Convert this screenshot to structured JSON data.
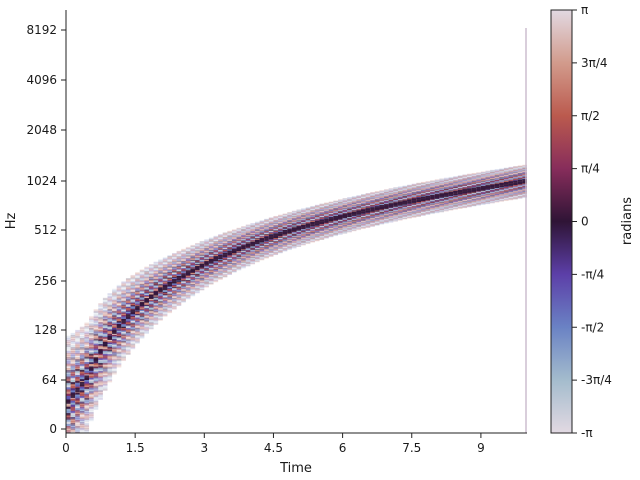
{
  "chart_data": {
    "type": "heatmap",
    "title": "",
    "xlabel": "Time",
    "ylabel": "Hz",
    "colorbar_label": "radians",
    "colormap": "twilight",
    "xlim": [
      0,
      10
    ],
    "x_ticks": [
      0,
      1.5,
      3,
      4.5,
      6,
      7.5,
      9
    ],
    "x_tick_labels": [
      "0",
      "1.5",
      "3",
      "4.5",
      "6",
      "7.5",
      "9"
    ],
    "y_scale": "symlog",
    "y_ticks": [
      0,
      64,
      128,
      256,
      512,
      1024,
      2048,
      4096,
      8192
    ],
    "y_tick_labels": [
      "0",
      "64",
      "128",
      "256",
      "512",
      "1024",
      "2048",
      "4096",
      "8192"
    ],
    "colorbar_range": [
      -3.14159,
      3.14159
    ],
    "colorbar_tick_labels": [
      "π",
      "3π/4",
      "π/2",
      "π/4",
      "0",
      "-π/4",
      "-π/2",
      "-3π/4",
      "-π"
    ],
    "chirp": {
      "description": "phase-colored chirp track rising from low frequency to about 1024 Hz",
      "time": [
        0,
        0.5,
        1,
        1.5,
        2,
        3,
        4,
        5,
        6,
        7,
        8,
        9,
        10
      ],
      "frequency_hz": [
        32,
        70,
        120,
        170,
        220,
        320,
        420,
        520,
        620,
        720,
        820,
        920,
        1024
      ]
    }
  }
}
